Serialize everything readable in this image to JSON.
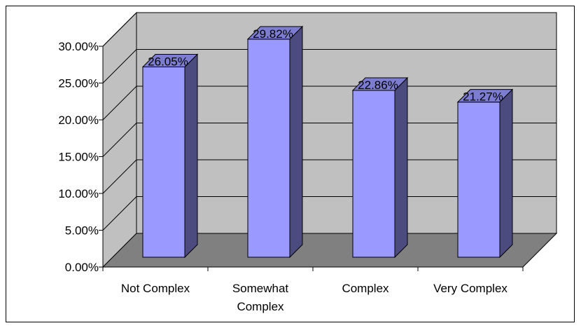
{
  "chart_data": {
    "type": "bar",
    "style": "3d-column",
    "categories": [
      "Not Complex",
      "Somewhat Complex",
      "Complex",
      "Very Complex"
    ],
    "category_lines": [
      [
        "Not Complex"
      ],
      [
        "Somewhat",
        "Complex"
      ],
      [
        "Complex"
      ],
      [
        "Very Complex"
      ]
    ],
    "values": [
      26.05,
      29.82,
      22.86,
      21.27
    ],
    "data_labels": [
      "26.05%",
      "29.82%",
      "22.86%",
      "21.27%"
    ],
    "ylim": [
      0,
      30
    ],
    "yticks": [
      0,
      5,
      10,
      15,
      20,
      25,
      30
    ],
    "ytick_labels": [
      "0.00%",
      "5.00%",
      "10.00%",
      "15.00%",
      "20.00%",
      "25.00%",
      "30.00%"
    ],
    "title": "",
    "xlabel": "",
    "ylabel": "",
    "grid": true,
    "legend": "none",
    "colors": {
      "bar_front": "#9999ff",
      "bar_side": "#4b4b7f",
      "bar_top": "#7c7cd0",
      "back_wall": "#c0c0c0",
      "side_wall": "#c0c0c0",
      "floor": "#808080",
      "gridline": "#000000"
    }
  }
}
